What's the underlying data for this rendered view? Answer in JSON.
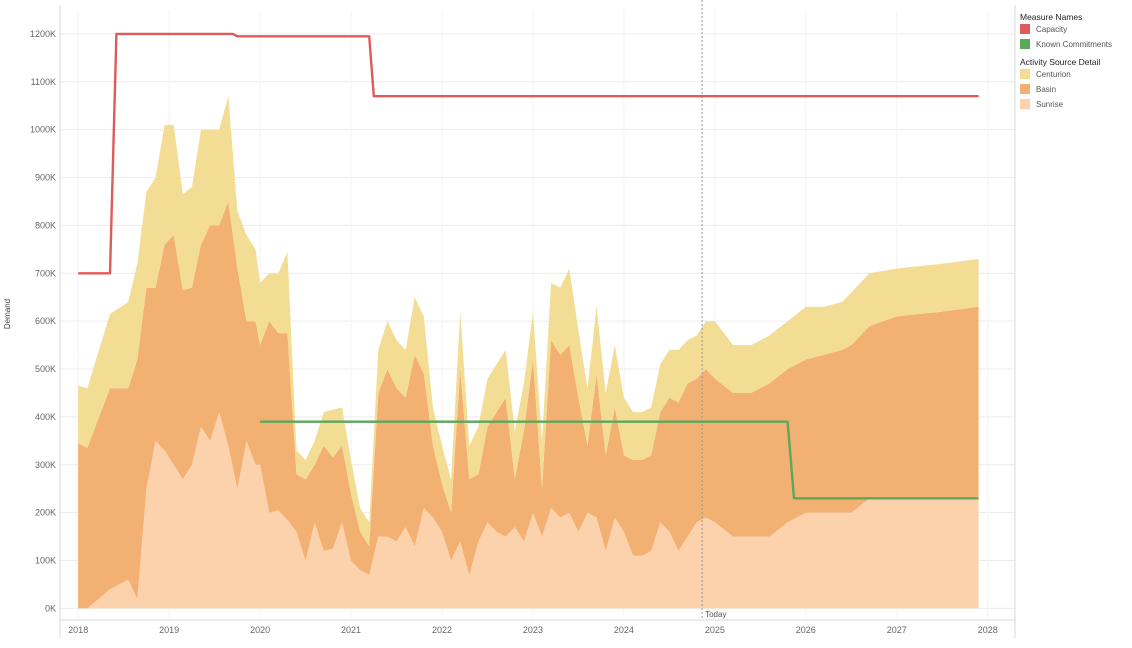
{
  "chart_data": {
    "type": "area",
    "title": "",
    "xlabel": "",
    "ylabel": "Demand",
    "xlim": [
      2017.8,
      2028.3
    ],
    "ylim": [
      -20000,
      1250000
    ],
    "grid": true,
    "legend_position": "top-right",
    "x_ticks": [
      2018,
      2019,
      2020,
      2021,
      2022,
      2023,
      2024,
      2025,
      2026,
      2027,
      2028
    ],
    "x_tick_labels": [
      "2018",
      "2019",
      "2020",
      "2021",
      "2022",
      "2023",
      "2024",
      "2025",
      "2026",
      "2027",
      "2028"
    ],
    "y_ticks": [
      0,
      100000,
      200000,
      300000,
      400000,
      500000,
      600000,
      700000,
      800000,
      900000,
      1000000,
      1100000,
      1200000
    ],
    "y_tick_labels": [
      "0K",
      "100K",
      "200K",
      "300K",
      "400K",
      "500K",
      "600K",
      "700K",
      "800K",
      "900K",
      "1000K",
      "1100K",
      "1200K"
    ],
    "reference_line": {
      "x": 2024.86,
      "label": "Today"
    },
    "legends": [
      {
        "title": "Measure Names",
        "items": [
          {
            "label": "Capacity",
            "color": "#e05a5a"
          },
          {
            "label": "Known Commitments",
            "color": "#5ba85b"
          }
        ]
      },
      {
        "title": "Activity Source Detail",
        "items": [
          {
            "label": "Centurion",
            "color": "#f3dd94"
          },
          {
            "label": "Basin",
            "color": "#f2b072"
          },
          {
            "label": "Sunrise",
            "color": "#fcd2ac"
          }
        ]
      }
    ],
    "stack_order": [
      "Sunrise",
      "Basin",
      "Centurion"
    ],
    "areas": [
      {
        "name": "Sunrise",
        "color": "#fcd2ac",
        "x": [
          2018.0,
          2018.1,
          2018.35,
          2018.55,
          2018.65,
          2018.75,
          2018.85,
          2018.95,
          2019.05,
          2019.15,
          2019.25,
          2019.35,
          2019.45,
          2019.55,
          2019.65,
          2019.75,
          2019.85,
          2019.95,
          2020.0,
          2020.1,
          2020.2,
          2020.3,
          2020.4,
          2020.5,
          2020.6,
          2020.7,
          2020.8,
          2020.9,
          2021.0,
          2021.1,
          2021.2,
          2021.3,
          2021.4,
          2021.5,
          2021.6,
          2021.7,
          2021.8,
          2021.9,
          2022.0,
          2022.1,
          2022.2,
          2022.3,
          2022.4,
          2022.5,
          2022.6,
          2022.7,
          2022.8,
          2022.9,
          2023.0,
          2023.1,
          2023.2,
          2023.3,
          2023.4,
          2023.5,
          2023.6,
          2023.7,
          2023.8,
          2023.9,
          2024.0,
          2024.1,
          2024.2,
          2024.3,
          2024.4,
          2024.5,
          2024.6,
          2024.7,
          2024.8,
          2024.9,
          2025.0,
          2025.2,
          2025.4,
          2025.6,
          2025.8,
          2026.0,
          2026.2,
          2026.4,
          2026.5,
          2026.7,
          2027.0,
          2027.5,
          2027.9
        ],
        "values": [
          0,
          0,
          40000,
          60000,
          20000,
          250000,
          350000,
          330000,
          300000,
          270000,
          300000,
          380000,
          350000,
          410000,
          340000,
          250000,
          350000,
          300000,
          300000,
          200000,
          205000,
          185000,
          160000,
          100000,
          180000,
          120000,
          125000,
          180000,
          100000,
          80000,
          70000,
          150000,
          150000,
          140000,
          170000,
          130000,
          210000,
          190000,
          160000,
          100000,
          140000,
          70000,
          140000,
          180000,
          160000,
          150000,
          170000,
          140000,
          200000,
          150000,
          210000,
          190000,
          200000,
          160000,
          200000,
          190000,
          120000,
          190000,
          160000,
          110000,
          110000,
          120000,
          180000,
          160000,
          120000,
          150000,
          180000,
          190000,
          180000,
          150000,
          150000,
          150000,
          180000,
          200000,
          200000,
          200000,
          200000,
          230000,
          230000,
          230000,
          230000
        ]
      },
      {
        "name": "Basin",
        "color": "#f2b072",
        "x": [
          2018.0,
          2018.1,
          2018.35,
          2018.55,
          2018.65,
          2018.75,
          2018.85,
          2018.95,
          2019.05,
          2019.15,
          2019.25,
          2019.35,
          2019.45,
          2019.55,
          2019.65,
          2019.75,
          2019.85,
          2019.95,
          2020.0,
          2020.1,
          2020.2,
          2020.3,
          2020.4,
          2020.5,
          2020.6,
          2020.7,
          2020.8,
          2020.9,
          2021.0,
          2021.1,
          2021.2,
          2021.3,
          2021.4,
          2021.5,
          2021.6,
          2021.7,
          2021.8,
          2021.9,
          2022.0,
          2022.1,
          2022.2,
          2022.3,
          2022.4,
          2022.5,
          2022.6,
          2022.7,
          2022.8,
          2022.9,
          2023.0,
          2023.1,
          2023.2,
          2023.3,
          2023.4,
          2023.5,
          2023.6,
          2023.7,
          2023.8,
          2023.9,
          2024.0,
          2024.1,
          2024.2,
          2024.3,
          2024.4,
          2024.5,
          2024.6,
          2024.7,
          2024.8,
          2024.9,
          2025.0,
          2025.2,
          2025.4,
          2025.6,
          2025.8,
          2026.0,
          2026.2,
          2026.4,
          2026.5,
          2026.7,
          2027.0,
          2027.5,
          2027.9
        ],
        "values": [
          345000,
          335000,
          420000,
          400000,
          500000,
          420000,
          320000,
          430000,
          480000,
          395000,
          370000,
          380000,
          450000,
          390000,
          510000,
          460000,
          250000,
          300000,
          250000,
          400000,
          370000,
          390000,
          120000,
          170000,
          120000,
          220000,
          190000,
          160000,
          140000,
          80000,
          60000,
          300000,
          350000,
          320000,
          270000,
          400000,
          280000,
          150000,
          100000,
          100000,
          360000,
          200000,
          140000,
          200000,
          250000,
          290000,
          100000,
          230000,
          320000,
          100000,
          350000,
          340000,
          350000,
          280000,
          140000,
          300000,
          200000,
          230000,
          160000,
          200000,
          200000,
          200000,
          230000,
          280000,
          310000,
          320000,
          300000,
          310000,
          300000,
          300000,
          300000,
          320000,
          320000,
          320000,
          330000,
          340000,
          350000,
          360000,
          380000,
          390000,
          400000
        ]
      },
      {
        "name": "Centurion",
        "color": "#f3dd94",
        "x": [
          2018.0,
          2018.1,
          2018.35,
          2018.55,
          2018.65,
          2018.75,
          2018.85,
          2018.95,
          2019.05,
          2019.15,
          2019.25,
          2019.35,
          2019.45,
          2019.55,
          2019.65,
          2019.75,
          2019.85,
          2019.95,
          2020.0,
          2020.1,
          2020.2,
          2020.3,
          2020.4,
          2020.5,
          2020.6,
          2020.7,
          2020.8,
          2020.9,
          2021.0,
          2021.1,
          2021.2,
          2021.3,
          2021.4,
          2021.5,
          2021.6,
          2021.7,
          2021.8,
          2021.9,
          2022.0,
          2022.1,
          2022.2,
          2022.3,
          2022.4,
          2022.5,
          2022.6,
          2022.7,
          2022.8,
          2022.9,
          2023.0,
          2023.1,
          2023.2,
          2023.3,
          2023.4,
          2023.5,
          2023.6,
          2023.7,
          2023.8,
          2023.9,
          2024.0,
          2024.1,
          2024.2,
          2024.3,
          2024.4,
          2024.5,
          2024.6,
          2024.7,
          2024.8,
          2024.9,
          2025.0,
          2025.2,
          2025.4,
          2025.6,
          2025.8,
          2026.0,
          2026.2,
          2026.4,
          2026.5,
          2026.7,
          2027.0,
          2027.5,
          2027.9
        ],
        "values": [
          120000,
          125000,
          155000,
          180000,
          200000,
          200000,
          230000,
          250000,
          230000,
          200000,
          210000,
          240000,
          200000,
          200000,
          220000,
          120000,
          180000,
          150000,
          130000,
          100000,
          125000,
          170000,
          50000,
          40000,
          50000,
          70000,
          100000,
          80000,
          70000,
          50000,
          50000,
          90000,
          100000,
          100000,
          100000,
          120000,
          120000,
          80000,
          80000,
          70000,
          120000,
          70000,
          100000,
          100000,
          100000,
          100000,
          100000,
          100000,
          100000,
          100000,
          120000,
          140000,
          160000,
          140000,
          120000,
          140000,
          130000,
          130000,
          120000,
          100000,
          100000,
          100000,
          100000,
          100000,
          110000,
          90000,
          90000,
          100000,
          120000,
          100000,
          100000,
          100000,
          100000,
          110000,
          100000,
          100000,
          110000,
          110000,
          100000,
          100000,
          100000
        ]
      }
    ],
    "lines": [
      {
        "name": "Capacity",
        "color": "#e05a5a",
        "x": [
          2018.0,
          2018.35,
          2018.42,
          2019.7,
          2019.75,
          2021.2,
          2021.25,
          2027.9
        ],
        "values": [
          700000,
          700000,
          1200000,
          1200000,
          1195000,
          1195000,
          1070000,
          1070000
        ]
      },
      {
        "name": "Known Commitments",
        "color": "#5ba85b",
        "x": [
          2020.0,
          2025.8,
          2025.87,
          2027.9
        ],
        "values": [
          390000,
          390000,
          230000,
          230000
        ]
      }
    ]
  }
}
